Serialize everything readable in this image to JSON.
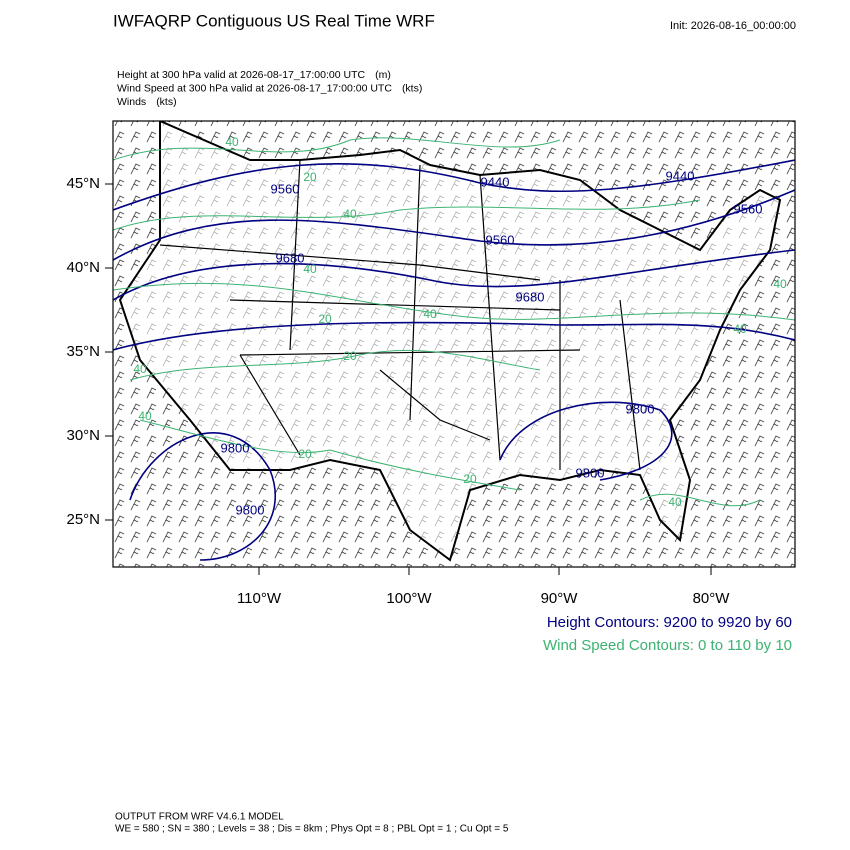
{
  "header": {
    "title": "IWFAQRP Contiguous US Real Time WRF",
    "init": "Init: 2026-08-16_00:00:00"
  },
  "fields": [
    {
      "name": "Height at 300 hPa valid at 2026-08-17_17:00:00 UTC",
      "unit": "(m)"
    },
    {
      "name": "Wind Speed at 300 hPa valid at 2026-08-17_17:00:00 UTC",
      "unit": "(kts)"
    },
    {
      "name": "Winds",
      "unit": "(kts)"
    }
  ],
  "map": {
    "lat_labels": [
      "45°N",
      "40°N",
      "35°N",
      "30°N",
      "25°N"
    ],
    "lon_labels": [
      "110°W",
      "100°W",
      "90°W",
      "80°W"
    ],
    "height_contour_labels": [
      "9560",
      "9440",
      "9440",
      "9560",
      "9680",
      "9560",
      "9680",
      "9800",
      "9800",
      "9800",
      "9800"
    ],
    "wind_contour_labels": [
      "40",
      "20",
      "40",
      "40",
      "40",
      "20",
      "20",
      "40",
      "40",
      "20",
      "20",
      "40",
      "40",
      "40"
    ]
  },
  "legend": [
    "Height Contours: 9200 to 9920 by 60",
    "Wind Speed Contours: 0 to 110 by 10"
  ],
  "footer": [
    "OUTPUT FROM WRF V4.6.1 MODEL",
    "WE = 580 ; SN = 380 ; Levels = 38 ; Dis = 8km ; Phys Opt = 8 ; PBL Opt = 1 ; Cu Opt = 5"
  ]
}
